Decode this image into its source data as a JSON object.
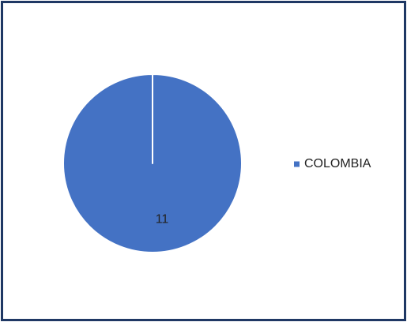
{
  "chart_data": {
    "type": "pie",
    "categories": [
      "COLOMBIA"
    ],
    "values": [
      11
    ],
    "colors": [
      "#4472c4"
    ],
    "legend": "right"
  }
}
